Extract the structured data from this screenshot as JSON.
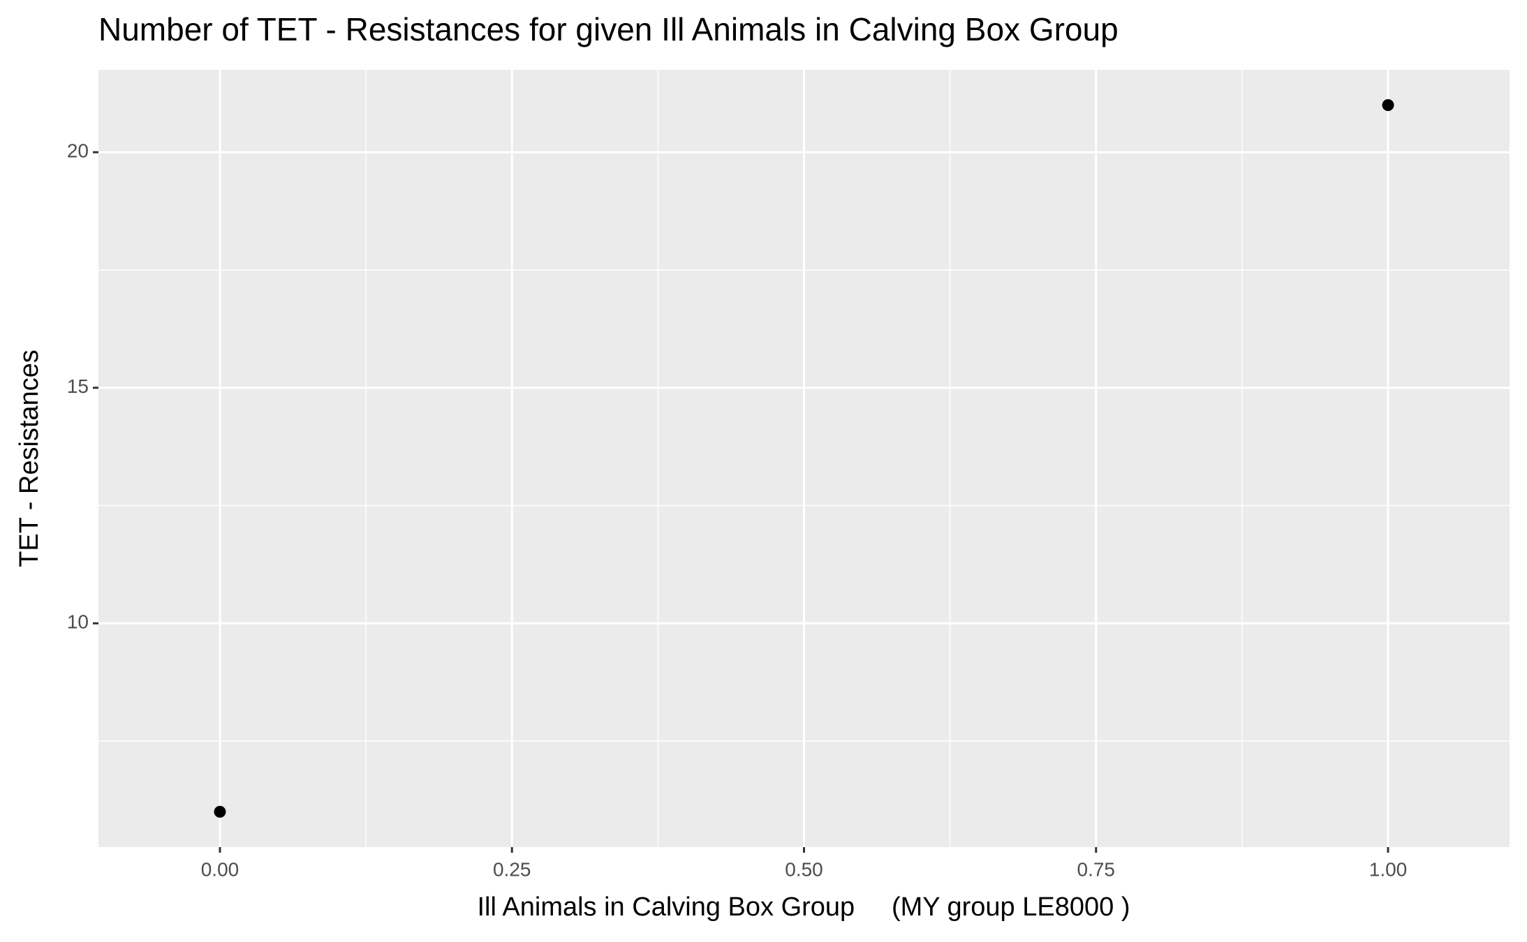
{
  "chart_data": {
    "type": "scatter",
    "title": "Number of TET - Resistances for given Ill Animals in Calving Box Group",
    "x_label": "Ill Animals in Calving Box Group     (MY group LE8000 )",
    "y_label": "TET - Resistances",
    "x": [
      0,
      1
    ],
    "values": [
      6,
      21
    ],
    "color": "#000000",
    "xlim": [
      -0.104,
      1.104
    ],
    "xticks": [
      {
        "value": 0,
        "label": "0.00"
      },
      {
        "value": 0.25,
        "label": "0.25"
      },
      {
        "value": 0.5,
        "label": "0.50"
      },
      {
        "value": 0.75,
        "label": "0.75"
      },
      {
        "value": 1,
        "label": "1.00"
      }
    ],
    "ylim": [
      5.25,
      21.75
    ],
    "yticks": [
      10,
      15,
      20
    ],
    "grid": true
  }
}
